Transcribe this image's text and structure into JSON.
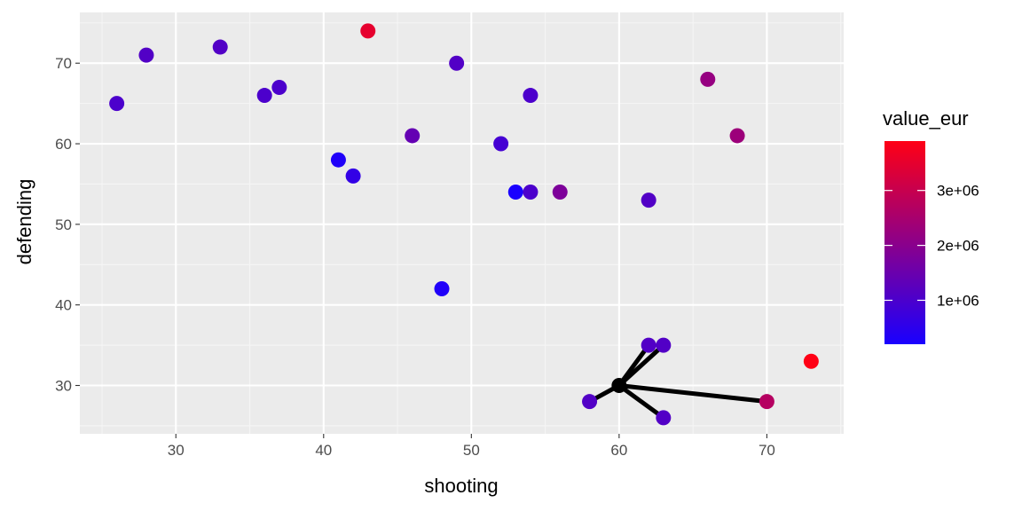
{
  "chart_data": {
    "type": "scatter",
    "xlabel": "shooting",
    "ylabel": "defending",
    "xlim": [
      23.5,
      75.2
    ],
    "ylim": [
      24,
      76.3
    ],
    "x_ticks": [
      30,
      40,
      50,
      60,
      70
    ],
    "y_ticks": [
      30,
      40,
      50,
      60,
      70
    ],
    "x_tick_labels": [
      "30",
      "40",
      "50",
      "60",
      "70"
    ],
    "y_tick_labels": [
      "30",
      "40",
      "50",
      "60",
      "70"
    ],
    "grid": true,
    "legend": {
      "title": "value_eur",
      "position": "right",
      "range": [
        200000,
        3900000
      ],
      "ticks": [
        1000000,
        2000000,
        3000000
      ],
      "tick_labels": [
        "1e+06",
        "2e+06",
        "3e+06"
      ],
      "color_low": "#1a00ff",
      "color_high": "#ff0015"
    },
    "points": [
      {
        "x": 26,
        "y": 65,
        "value": 1000000
      },
      {
        "x": 28,
        "y": 71,
        "value": 1100000
      },
      {
        "x": 33,
        "y": 72,
        "value": 1100000
      },
      {
        "x": 36,
        "y": 66,
        "value": 1000000
      },
      {
        "x": 37,
        "y": 67,
        "value": 1000000
      },
      {
        "x": 41,
        "y": 58,
        "value": 300000
      },
      {
        "x": 42,
        "y": 56,
        "value": 600000
      },
      {
        "x": 43,
        "y": 74,
        "value": 3500000
      },
      {
        "x": 46,
        "y": 61,
        "value": 1400000
      },
      {
        "x": 48,
        "y": 42,
        "value": 300000
      },
      {
        "x": 49,
        "y": 70,
        "value": 1100000
      },
      {
        "x": 52,
        "y": 60,
        "value": 900000
      },
      {
        "x": 53,
        "y": 54,
        "value": 200000
      },
      {
        "x": 54,
        "y": 54,
        "value": 1000000
      },
      {
        "x": 54,
        "y": 66,
        "value": 1000000
      },
      {
        "x": 56,
        "y": 54,
        "value": 1800000
      },
      {
        "x": 62,
        "y": 53,
        "value": 1100000
      },
      {
        "x": 66,
        "y": 68,
        "value": 2200000
      },
      {
        "x": 68,
        "y": 61,
        "value": 2300000
      },
      {
        "x": 73,
        "y": 33,
        "value": 3900000
      },
      {
        "x": 58,
        "y": 28,
        "value": 1100000
      },
      {
        "x": 62,
        "y": 35,
        "value": 1100000
      },
      {
        "x": 63,
        "y": 35,
        "value": 1100000
      },
      {
        "x": 63,
        "y": 26,
        "value": 1100000
      },
      {
        "x": 70,
        "y": 28,
        "value": 2700000
      }
    ],
    "highlight": {
      "point": {
        "x": 60,
        "y": 30
      },
      "neighbors": [
        {
          "x": 58,
          "y": 28
        },
        {
          "x": 62,
          "y": 35
        },
        {
          "x": 63,
          "y": 35
        },
        {
          "x": 63,
          "y": 26
        },
        {
          "x": 70,
          "y": 28
        }
      ],
      "color": "#000000"
    }
  },
  "colors": {
    "panel_background": "#ebebeb",
    "grid_major": "#ffffff",
    "grid_minor": "#f5f5f5"
  }
}
